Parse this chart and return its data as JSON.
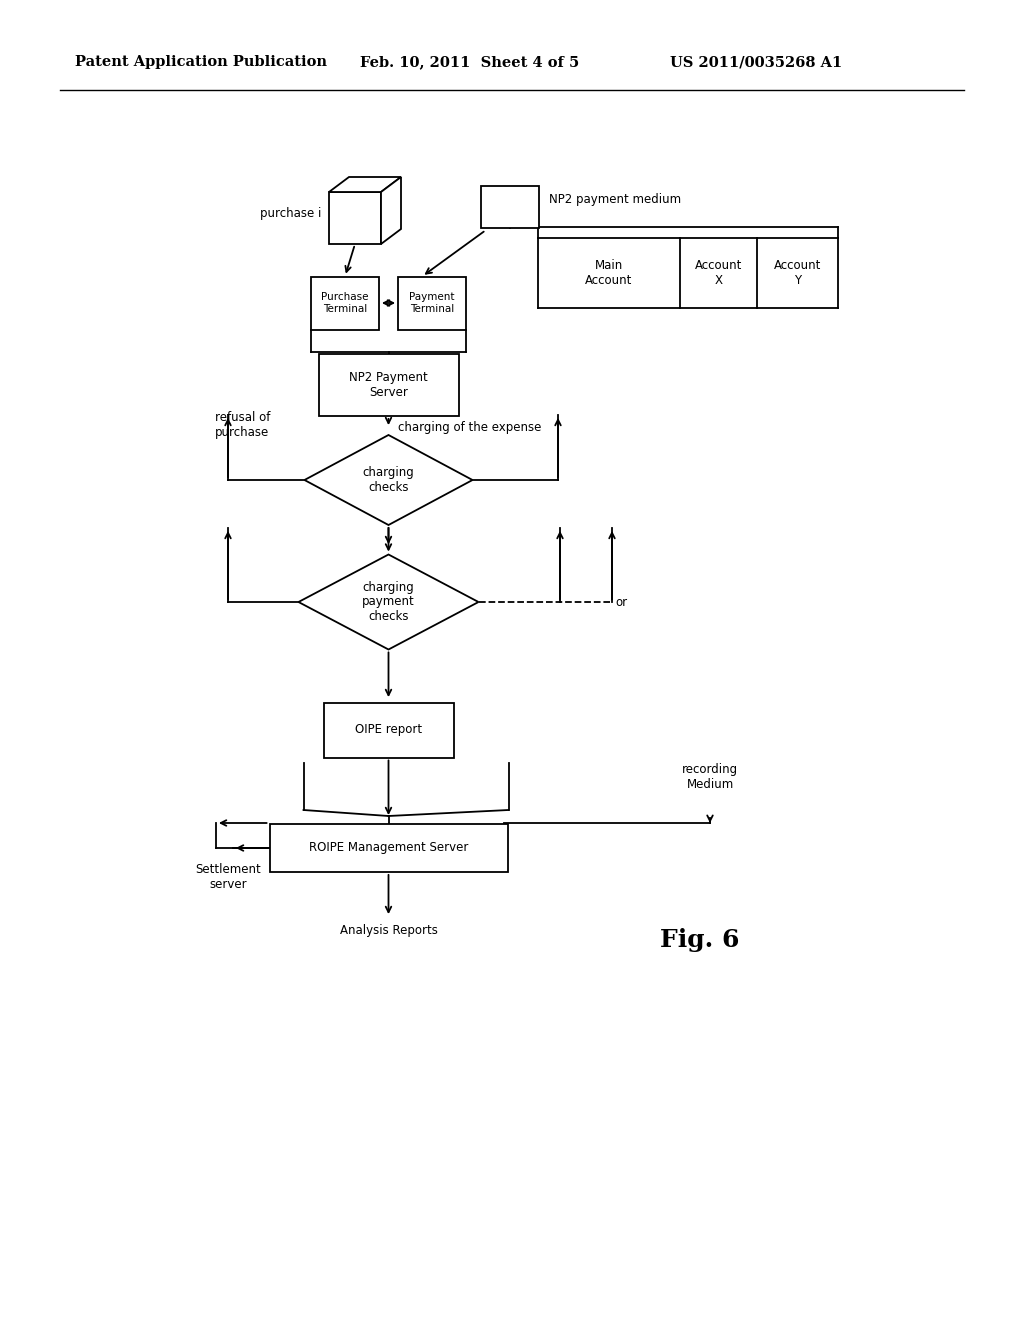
{
  "bg_color": "#ffffff",
  "header_left": "Patent Application Publication",
  "header_mid": "Feb. 10, 2011  Sheet 4 of 5",
  "header_right": "US 2011/0035268 A1",
  "fig_label": "Fig. 6",
  "header_fontsize": 10.5,
  "body_fontsize": 8.5,
  "small_fontsize": 7.5,
  "fig_fontsize": 18
}
